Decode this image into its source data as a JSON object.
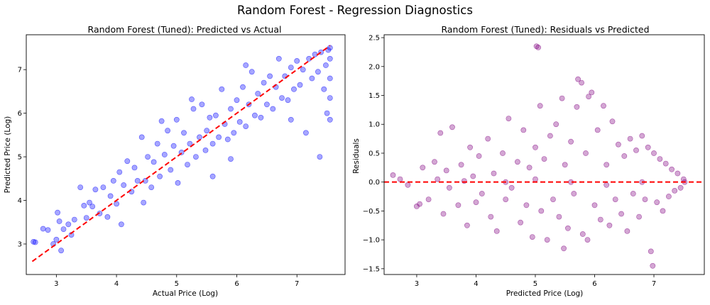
{
  "figure": {
    "suptitle": "Random Forest - Regression Diagnostics"
  },
  "chart_data": [
    {
      "type": "scatter",
      "title": "Random Forest (Tuned): Predicted vs Actual",
      "xlabel": "Actual Price (Log)",
      "ylabel": "Predicted Price (Log)",
      "xlim": [
        2.5,
        7.8
      ],
      "ylim": [
        2.3,
        7.8
      ],
      "xticks": [
        3,
        4,
        5,
        6,
        7
      ],
      "yticks": [
        3,
        4,
        5,
        6,
        7
      ],
      "grid": false,
      "point_color": "#0000ff",
      "point_alpha": 0.35,
      "reference_line": {
        "style": "dashed",
        "color": "#ff0000",
        "from": [
          2.6,
          2.6
        ],
        "to": [
          7.55,
          7.55
        ]
      },
      "points": [
        [
          2.62,
          3.05
        ],
        [
          2.65,
          3.04
        ],
        [
          2.78,
          3.35
        ],
        [
          2.86,
          3.32
        ],
        [
          2.95,
          3.0
        ],
        [
          3.0,
          3.1
        ],
        [
          3.02,
          3.72
        ],
        [
          3.05,
          3.52
        ],
        [
          3.08,
          2.85
        ],
        [
          3.12,
          3.34
        ],
        [
          3.2,
          3.45
        ],
        [
          3.25,
          3.21
        ],
        [
          3.3,
          3.56
        ],
        [
          3.4,
          4.3
        ],
        [
          3.46,
          3.88
        ],
        [
          3.5,
          3.6
        ],
        [
          3.55,
          3.95
        ],
        [
          3.6,
          3.86
        ],
        [
          3.65,
          4.25
        ],
        [
          3.72,
          3.7
        ],
        [
          3.78,
          4.3
        ],
        [
          3.85,
          3.62
        ],
        [
          3.9,
          4.1
        ],
        [
          3.95,
          4.45
        ],
        [
          4.0,
          3.92
        ],
        [
          4.05,
          4.65
        ],
        [
          4.08,
          3.45
        ],
        [
          4.12,
          4.35
        ],
        [
          4.18,
          4.9
        ],
        [
          4.25,
          4.2
        ],
        [
          4.3,
          4.75
        ],
        [
          4.35,
          4.45
        ],
        [
          4.42,
          5.45
        ],
        [
          4.48,
          4.45
        ],
        [
          4.52,
          5.0
        ],
        [
          4.58,
          4.3
        ],
        [
          4.62,
          4.88
        ],
        [
          4.68,
          5.3
        ],
        [
          4.72,
          4.55
        ],
        [
          4.8,
          5.05
        ],
        [
          4.85,
          5.6
        ],
        [
          4.9,
          4.7
        ],
        [
          4.95,
          5.25
        ],
        [
          5.0,
          5.85
        ],
        [
          5.02,
          4.4
        ],
        [
          5.08,
          5.1
        ],
        [
          5.12,
          5.55
        ],
        [
          5.18,
          4.82
        ],
        [
          5.22,
          5.3
        ],
        [
          5.28,
          6.1
        ],
        [
          5.32,
          5.0
        ],
        [
          5.38,
          5.45
        ],
        [
          5.42,
          6.2
        ],
        [
          5.48,
          5.15
        ],
        [
          5.5,
          5.6
        ],
        [
          5.55,
          5.9
        ],
        [
          5.6,
          5.3
        ],
        [
          5.65,
          5.95
        ],
        [
          5.7,
          5.45
        ],
        [
          5.75,
          6.55
        ],
        [
          5.8,
          5.75
        ],
        [
          5.85,
          5.4
        ],
        [
          5.9,
          6.1
        ],
        [
          5.95,
          5.55
        ],
        [
          6.0,
          6.3
        ],
        [
          6.05,
          5.8
        ],
        [
          6.1,
          6.6
        ],
        [
          6.15,
          5.7
        ],
        [
          6.2,
          6.2
        ],
        [
          6.25,
          6.95
        ],
        [
          6.3,
          5.95
        ],
        [
          6.35,
          6.45
        ],
        [
          6.4,
          5.9
        ],
        [
          6.45,
          6.7
        ],
        [
          6.5,
          6.2
        ],
        [
          6.55,
          6.85
        ],
        [
          6.6,
          6.1
        ],
        [
          6.65,
          6.6
        ],
        [
          6.7,
          7.25
        ],
        [
          6.75,
          6.35
        ],
        [
          6.8,
          6.85
        ],
        [
          6.85,
          6.3
        ],
        [
          6.9,
          7.05
        ],
        [
          6.95,
          6.55
        ],
        [
          7.0,
          7.2
        ],
        [
          7.05,
          6.65
        ],
        [
          7.1,
          7.0
        ],
        [
          7.15,
          5.55
        ],
        [
          7.2,
          7.25
        ],
        [
          7.25,
          6.8
        ],
        [
          7.3,
          7.35
        ],
        [
          7.35,
          6.95
        ],
        [
          7.38,
          5.0
        ],
        [
          7.4,
          7.4
        ],
        [
          7.45,
          6.55
        ],
        [
          7.48,
          7.1
        ],
        [
          7.5,
          6.0
        ],
        [
          7.52,
          7.45
        ],
        [
          7.55,
          5.85
        ],
        [
          7.55,
          6.35
        ],
        [
          7.55,
          6.8
        ],
        [
          7.55,
          7.25
        ],
        [
          7.55,
          7.5
        ],
        [
          5.25,
          6.32
        ],
        [
          4.75,
          5.82
        ],
        [
          6.15,
          7.1
        ],
        [
          5.6,
          4.55
        ],
        [
          4.45,
          3.95
        ],
        [
          6.9,
          5.85
        ],
        [
          5.9,
          4.95
        ]
      ]
    },
    {
      "type": "scatter",
      "title": "Random Forest (Tuned): Residuals vs Predicted",
      "xlabel": "Predicted Price (Log)",
      "ylabel": "Residuals",
      "xlim": [
        2.45,
        7.85
      ],
      "ylim": [
        -1.6,
        2.55
      ],
      "xticks": [
        3,
        4,
        5,
        6,
        7
      ],
      "yticks": [
        -1.5,
        -1.0,
        -0.5,
        0.0,
        0.5,
        1.0,
        1.5,
        2.0,
        2.5
      ],
      "grid": false,
      "point_color": "#800080",
      "point_alpha": 0.35,
      "reference_line": {
        "style": "dashed",
        "color": "#ff0000",
        "y": 0.0
      },
      "points": [
        [
          2.6,
          0.12
        ],
        [
          2.72,
          0.05
        ],
        [
          2.85,
          -0.05
        ],
        [
          3.0,
          -0.42
        ],
        [
          3.05,
          -0.38
        ],
        [
          3.1,
          0.25
        ],
        [
          3.2,
          -0.3
        ],
        [
          3.3,
          0.35
        ],
        [
          3.35,
          0.05
        ],
        [
          3.4,
          0.85
        ],
        [
          3.45,
          -0.55
        ],
        [
          3.5,
          0.2
        ],
        [
          3.55,
          -0.1
        ],
        [
          3.6,
          0.95
        ],
        [
          3.7,
          -0.4
        ],
        [
          3.75,
          0.3
        ],
        [
          3.85,
          -0.75
        ],
        [
          3.9,
          0.6
        ],
        [
          3.95,
          0.1
        ],
        [
          4.0,
          -0.35
        ],
        [
          4.05,
          0.45
        ],
        [
          4.1,
          -0.2
        ],
        [
          4.2,
          0.75
        ],
        [
          4.25,
          -0.6
        ],
        [
          4.3,
          0.15
        ],
        [
          4.35,
          -0.85
        ],
        [
          4.45,
          0.5
        ],
        [
          4.5,
          -0.3
        ],
        [
          4.55,
          1.1
        ],
        [
          4.6,
          -0.1
        ],
        [
          4.7,
          0.35
        ],
        [
          4.75,
          -0.7
        ],
        [
          4.8,
          0.9
        ],
        [
          4.85,
          -0.4
        ],
        [
          4.9,
          0.25
        ],
        [
          4.95,
          -0.95
        ],
        [
          5.0,
          0.6
        ],
        [
          5.02,
          2.35
        ],
        [
          5.05,
          2.33
        ],
        [
          5.08,
          1.32
        ],
        [
          5.1,
          -0.5
        ],
        [
          5.15,
          0.4
        ],
        [
          5.2,
          -1.0
        ],
        [
          5.25,
          0.8
        ],
        [
          5.3,
          -0.3
        ],
        [
          5.35,
          1.0
        ],
        [
          5.4,
          -0.6
        ],
        [
          5.45,
          1.45
        ],
        [
          5.48,
          -1.15
        ],
        [
          5.5,
          0.3
        ],
        [
          5.55,
          -0.8
        ],
        [
          5.6,
          0.7
        ],
        [
          5.65,
          -0.2
        ],
        [
          5.7,
          1.3
        ],
        [
          5.72,
          1.78
        ],
        [
          5.78,
          1.72
        ],
        [
          5.8,
          -0.9
        ],
        [
          5.85,
          0.5
        ],
        [
          5.88,
          -1.0
        ],
        [
          5.9,
          1.48
        ],
        [
          5.95,
          1.55
        ],
        [
          6.0,
          -0.4
        ],
        [
          6.05,
          0.9
        ],
        [
          6.1,
          -0.65
        ],
        [
          6.15,
          1.32
        ],
        [
          6.2,
          0.3
        ],
        [
          6.25,
          -0.75
        ],
        [
          6.3,
          1.05
        ],
        [
          6.35,
          -0.3
        ],
        [
          6.4,
          0.65
        ],
        [
          6.45,
          -0.55
        ],
        [
          6.5,
          0.45
        ],
        [
          6.55,
          -0.85
        ],
        [
          6.6,
          0.75
        ],
        [
          6.65,
          -0.2
        ],
        [
          6.7,
          0.55
        ],
        [
          6.75,
          -0.6
        ],
        [
          6.8,
          0.8
        ],
        [
          6.85,
          -0.3
        ],
        [
          6.9,
          0.6
        ],
        [
          6.95,
          -1.2
        ],
        [
          6.98,
          -1.45
        ],
        [
          7.0,
          0.5
        ],
        [
          7.05,
          -0.35
        ],
        [
          7.1,
          0.4
        ],
        [
          7.15,
          -0.5
        ],
        [
          7.2,
          0.32
        ],
        [
          7.25,
          -0.25
        ],
        [
          7.3,
          0.22
        ],
        [
          7.35,
          -0.15
        ],
        [
          7.4,
          0.15
        ],
        [
          7.45,
          -0.1
        ],
        [
          7.5,
          0.05
        ],
        [
          7.52,
          0.0
        ],
        [
          5.6,
          0.0
        ],
        [
          5.0,
          0.05
        ],
        [
          6.2,
          -0.05
        ],
        [
          4.5,
          0.0
        ],
        [
          6.8,
          0.0
        ],
        [
          3.8,
          0.02
        ]
      ]
    }
  ]
}
